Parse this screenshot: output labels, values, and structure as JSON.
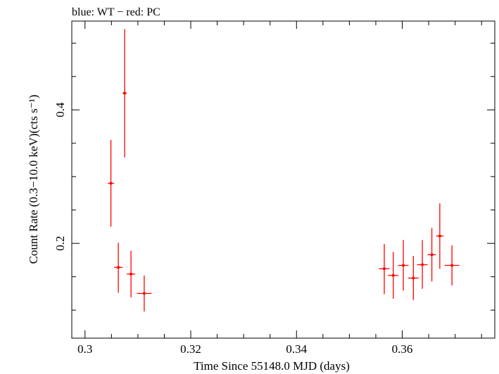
{
  "chart_data": {
    "type": "scatter",
    "title": "blue: WT − red: PC",
    "xlabel": "Time Since 55148.0 MJD (days)",
    "ylabel": "Count Rate (0.3−10.0 keV)(cts s⁻¹)",
    "xlim": [
      0.2975,
      0.3775
    ],
    "ylim": [
      0.058,
      0.533
    ],
    "x_ticks": [
      0.3,
      0.32,
      0.34,
      0.36
    ],
    "x_tick_labels": [
      "0.3",
      "0.32",
      "0.34",
      "0.36"
    ],
    "y_ticks": [
      0.2,
      0.4
    ],
    "y_tick_labels": [
      "0.2",
      "0.4"
    ],
    "grid": false,
    "series": [
      {
        "name": "PC",
        "color": "#ff0000",
        "points": [
          {
            "x": 0.3049,
            "y": 0.29,
            "xerr": 0.0006,
            "ylo": 0.225,
            "yhi": 0.355
          },
          {
            "x": 0.3063,
            "y": 0.164,
            "xerr": 0.0008,
            "ylo": 0.126,
            "yhi": 0.201
          },
          {
            "x": 0.3075,
            "y": 0.425,
            "xerr": 0.0004,
            "ylo": 0.329,
            "yhi": 0.521
          },
          {
            "x": 0.3087,
            "y": 0.154,
            "xerr": 0.0008,
            "ylo": 0.119,
            "yhi": 0.189
          },
          {
            "x": 0.3112,
            "y": 0.125,
            "xerr": 0.0014,
            "ylo": 0.098,
            "yhi": 0.152
          },
          {
            "x": 0.3566,
            "y": 0.162,
            "xerr": 0.001,
            "ylo": 0.124,
            "yhi": 0.199
          },
          {
            "x": 0.3583,
            "y": 0.152,
            "xerr": 0.001,
            "ylo": 0.117,
            "yhi": 0.187
          },
          {
            "x": 0.3602,
            "y": 0.167,
            "xerr": 0.001,
            "ylo": 0.129,
            "yhi": 0.205
          },
          {
            "x": 0.3621,
            "y": 0.148,
            "xerr": 0.001,
            "ylo": 0.115,
            "yhi": 0.181
          },
          {
            "x": 0.3638,
            "y": 0.168,
            "xerr": 0.001,
            "ylo": 0.132,
            "yhi": 0.205
          },
          {
            "x": 0.3656,
            "y": 0.183,
            "xerr": 0.0008,
            "ylo": 0.143,
            "yhi": 0.223
          },
          {
            "x": 0.3671,
            "y": 0.211,
            "xerr": 0.0007,
            "ylo": 0.162,
            "yhi": 0.26
          },
          {
            "x": 0.3694,
            "y": 0.167,
            "xerr": 0.0014,
            "ylo": 0.137,
            "yhi": 0.197
          }
        ]
      }
    ]
  }
}
